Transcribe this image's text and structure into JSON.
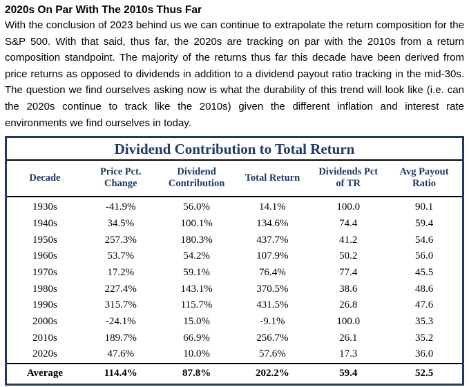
{
  "article": {
    "heading": "2020s On Par With The 2010s Thus Far",
    "body": "With the conclusion of 2023 behind us we can continue to extrapolate the return composition for the S&P 500. With that said, thus far, the 2020s are tracking on par with the 2010s from a return composition standpoint. The majority of the returns thus far this decade have been derived from price returns as opposed to dividends in addition to a dividend payout ratio tracking in the mid-30s. The question we find ourselves asking now is what the durability of this trend will look like (i.e. can the 2020s continue to track like the 2010s) given the different inflation and interest rate environments we find ourselves in today."
  },
  "table": {
    "title": "Dividend Contribution to Total Return",
    "columns": [
      "Decade",
      "Price Pct. Change",
      "Dividend Contribution",
      "Total Return",
      "Dividends Pct of TR",
      "Avg Payout Ratio"
    ],
    "rows": [
      [
        "1930s",
        "-41.9%",
        "56.0%",
        "14.1%",
        "100.0",
        "90.1"
      ],
      [
        "1940s",
        "34.5%",
        "100.1%",
        "134.6%",
        "74.4",
        "59.4"
      ],
      [
        "1950s",
        "257.3%",
        "180.3%",
        "437.7%",
        "41.2",
        "54.6"
      ],
      [
        "1960s",
        "53.7%",
        "54.2%",
        "107.9%",
        "50.2",
        "56.0"
      ],
      [
        "1970s",
        "17.2%",
        "59.1%",
        "76.4%",
        "77.4",
        "45.5"
      ],
      [
        "1980s",
        "227.4%",
        "143.1%",
        "370.5%",
        "38.6",
        "48.6"
      ],
      [
        "1990s",
        "315.7%",
        "115.7%",
        "431.5%",
        "26.8",
        "47.6"
      ],
      [
        "2000s",
        "-24.1%",
        "15.0%",
        "-9.1%",
        "100.0",
        "35.3"
      ],
      [
        "2010s",
        "189.7%",
        "66.9%",
        "256.7%",
        "26.1",
        "35.2"
      ],
      [
        "2020s",
        "47.6%",
        "10.0%",
        "57.6%",
        "17.3",
        "36.0"
      ]
    ],
    "average_row": [
      "Average",
      "114.4%",
      "87.8%",
      "202.2%",
      "59.4",
      "52.5"
    ]
  },
  "colors": {
    "accent_navy": "#1F3864",
    "border_navy": "#1F3864",
    "line_black": "#000000",
    "text_black": "#000000"
  }
}
